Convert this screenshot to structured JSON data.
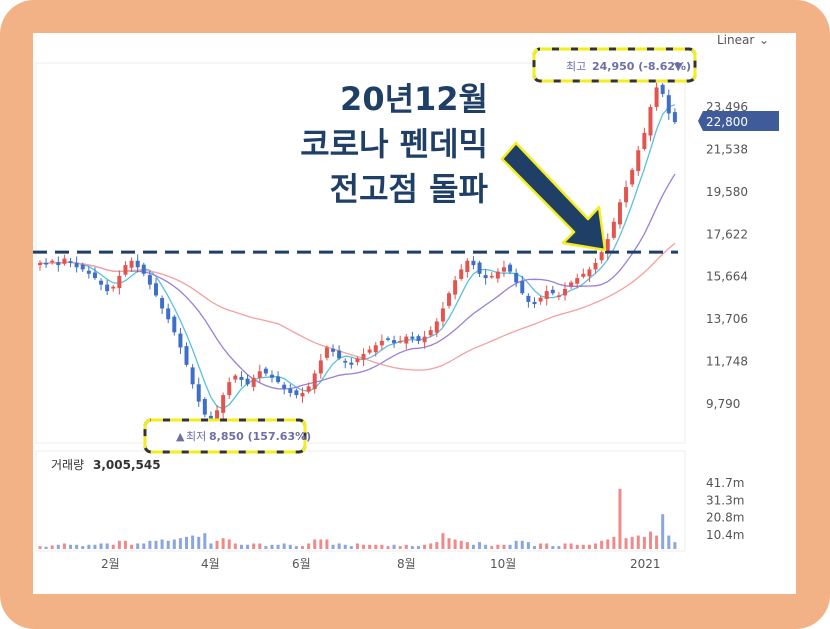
{
  "scale_mode": "Linear",
  "annotation": {
    "line1": "20년12월",
    "line2": "코로나 펜데믹",
    "line3": "전고점 돌파"
  },
  "callouts": {
    "high": {
      "prefix": "최고",
      "value": "24,950 (-8.62%)",
      "marker": "▼"
    },
    "low": {
      "marker": "▲",
      "prefix": "최저",
      "value": "8,850 (157.63%)"
    }
  },
  "current_price_label": "22,800",
  "volume": {
    "label": "거래량",
    "value": "3,005,545"
  },
  "colors": {
    "up": "#e2554f",
    "down": "#3e6fc8",
    "ma_short": "#5bc0de",
    "ma_mid": "#9a7fd8",
    "ma_long": "#f3a0a0",
    "annotation": "#1f3f66",
    "highlight": "#f4ee1f",
    "current_tag": "#3f5b9a"
  },
  "chart_data": {
    "type": "candlestick",
    "price_axis_ticks": [
      "23,496",
      "21,538",
      "19,580",
      "17,622",
      "15,664",
      "13,706",
      "11,748",
      "9,790"
    ],
    "price_axis_values": [
      23496,
      21538,
      19580,
      17622,
      15664,
      13706,
      11748,
      9790
    ],
    "volume_axis_ticks": [
      "41.7m",
      "31.3m",
      "20.8m",
      "10.4m"
    ],
    "volume_axis_values": [
      41.7,
      31.3,
      20.8,
      10.4
    ],
    "x_labels": [
      "2월",
      "4월",
      "6월",
      "8월",
      "10월",
      "2021"
    ],
    "reference_level": 16800,
    "high": 24950,
    "low": 8850,
    "last": 22800,
    "close": [
      16300,
      16250,
      16400,
      16200,
      16500,
      16300,
      16100,
      16000,
      15800,
      15600,
      15300,
      15000,
      15200,
      15700,
      16200,
      16400,
      16100,
      15800,
      15300,
      14800,
      14200,
      13700,
      13100,
      12400,
      11600,
      10700,
      9900,
      9300,
      9000,
      9500,
      10200,
      10800,
      11100,
      10900,
      10700,
      11000,
      11300,
      11200,
      11000,
      10800,
      10500,
      10300,
      10200,
      10300,
      10600,
      11200,
      11800,
      12400,
      12200,
      11900,
      11700,
      11600,
      11900,
      12100,
      12300,
      12500,
      12700,
      12800,
      12600,
      12700,
      12900,
      12800,
      12700,
      12900,
      13200,
      13600,
      14200,
      14900,
      15500,
      16000,
      16400,
      16200,
      15800,
      15600,
      15700,
      15900,
      16100,
      15900,
      15400,
      14900,
      14500,
      14400,
      14700,
      15000,
      14900,
      14800,
      15100,
      15400,
      15600,
      15800,
      16000,
      16300,
      16800,
      17400,
      18200,
      19100,
      19800,
      20600,
      21500,
      22300,
      23500,
      24400,
      24100,
      23200,
      22800
    ]
  }
}
